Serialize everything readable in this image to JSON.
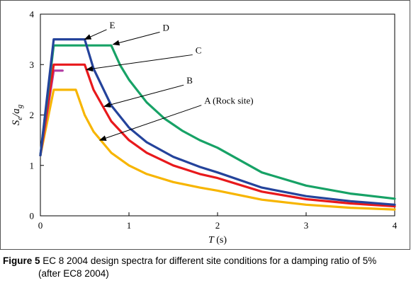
{
  "chart_data": {
    "type": "line",
    "xlabel_main": "T",
    "xlabel_unit": " (s)",
    "ylabel_parts": [
      "S",
      "e",
      "/a",
      "g"
    ],
    "xlim": [
      0,
      4
    ],
    "ylim": [
      0,
      4
    ],
    "x_ticks": [
      "0",
      "1",
      "2",
      "3",
      "4"
    ],
    "y_ticks": [
      "0",
      "1",
      "2",
      "3",
      "4"
    ],
    "grid": false,
    "series": [
      {
        "name": "A (Rock site)",
        "color": "#f7b500",
        "x": [
          0,
          0.15,
          0.4,
          0.5,
          0.6,
          0.8,
          1.0,
          1.2,
          1.5,
          1.8,
          2.0,
          2.5,
          3.0,
          3.5,
          4.0
        ],
        "y": [
          1.2,
          2.5,
          2.5,
          2.0,
          1.67,
          1.25,
          1.0,
          0.83,
          0.67,
          0.56,
          0.5,
          0.32,
          0.22,
          0.16,
          0.125
        ]
      },
      {
        "name": "B",
        "color": "#e8191c",
        "x": [
          0,
          0.15,
          0.5,
          0.6,
          0.8,
          1.0,
          1.2,
          1.5,
          1.8,
          2.0,
          2.5,
          3.0,
          3.5,
          4.0
        ],
        "y": [
          1.2,
          3.0,
          3.0,
          2.5,
          1.875,
          1.5,
          1.25,
          1.0,
          0.83,
          0.75,
          0.48,
          0.33,
          0.245,
          0.19
        ]
      },
      {
        "name": "C",
        "color": "#b23aa2",
        "x": [
          0,
          0.15,
          0.25
        ],
        "y": [
          1.2,
          2.88,
          2.88
        ]
      },
      {
        "name": "D",
        "color": "#17a266",
        "x": [
          0,
          0.15,
          0.8,
          0.9,
          1.0,
          1.2,
          1.4,
          1.6,
          1.8,
          2.0,
          2.5,
          3.0,
          3.5,
          4.0
        ],
        "y": [
          1.2,
          3.38,
          3.38,
          2.99,
          2.7,
          2.25,
          1.93,
          1.69,
          1.5,
          1.35,
          0.86,
          0.6,
          0.44,
          0.34
        ]
      },
      {
        "name": "E",
        "color": "#24439b",
        "x": [
          0,
          0.15,
          0.5,
          0.6,
          0.8,
          1.0,
          1.2,
          1.5,
          1.8,
          2.0,
          2.5,
          3.0,
          3.5,
          4.0
        ],
        "y": [
          1.2,
          3.5,
          3.5,
          2.92,
          2.19,
          1.75,
          1.46,
          1.17,
          0.97,
          0.86,
          0.56,
          0.39,
          0.29,
          0.22
        ]
      }
    ],
    "annotations": [
      {
        "label": "E",
        "x": 0.78,
        "y": 3.75,
        "arrow_to": [
          0.5,
          3.5
        ]
      },
      {
        "label": "D",
        "x": 1.38,
        "y": 3.7,
        "arrow_to": [
          0.82,
          3.4
        ]
      },
      {
        "label": "C",
        "x": 1.75,
        "y": 3.25,
        "arrow_to": [
          0.52,
          2.9
        ]
      },
      {
        "label": "B",
        "x": 1.65,
        "y": 2.65,
        "arrow_to": [
          0.72,
          2.17
        ]
      },
      {
        "label": "A (Rock site)",
        "x": 1.85,
        "y": 2.25,
        "arrow_to": [
          0.67,
          1.5
        ]
      }
    ]
  },
  "caption": {
    "label": "Figure 5",
    "line1": " EC 8 2004 design spectra for different site conditions for a damping ratio of 5%",
    "line2": "(after EC8 2004)"
  }
}
